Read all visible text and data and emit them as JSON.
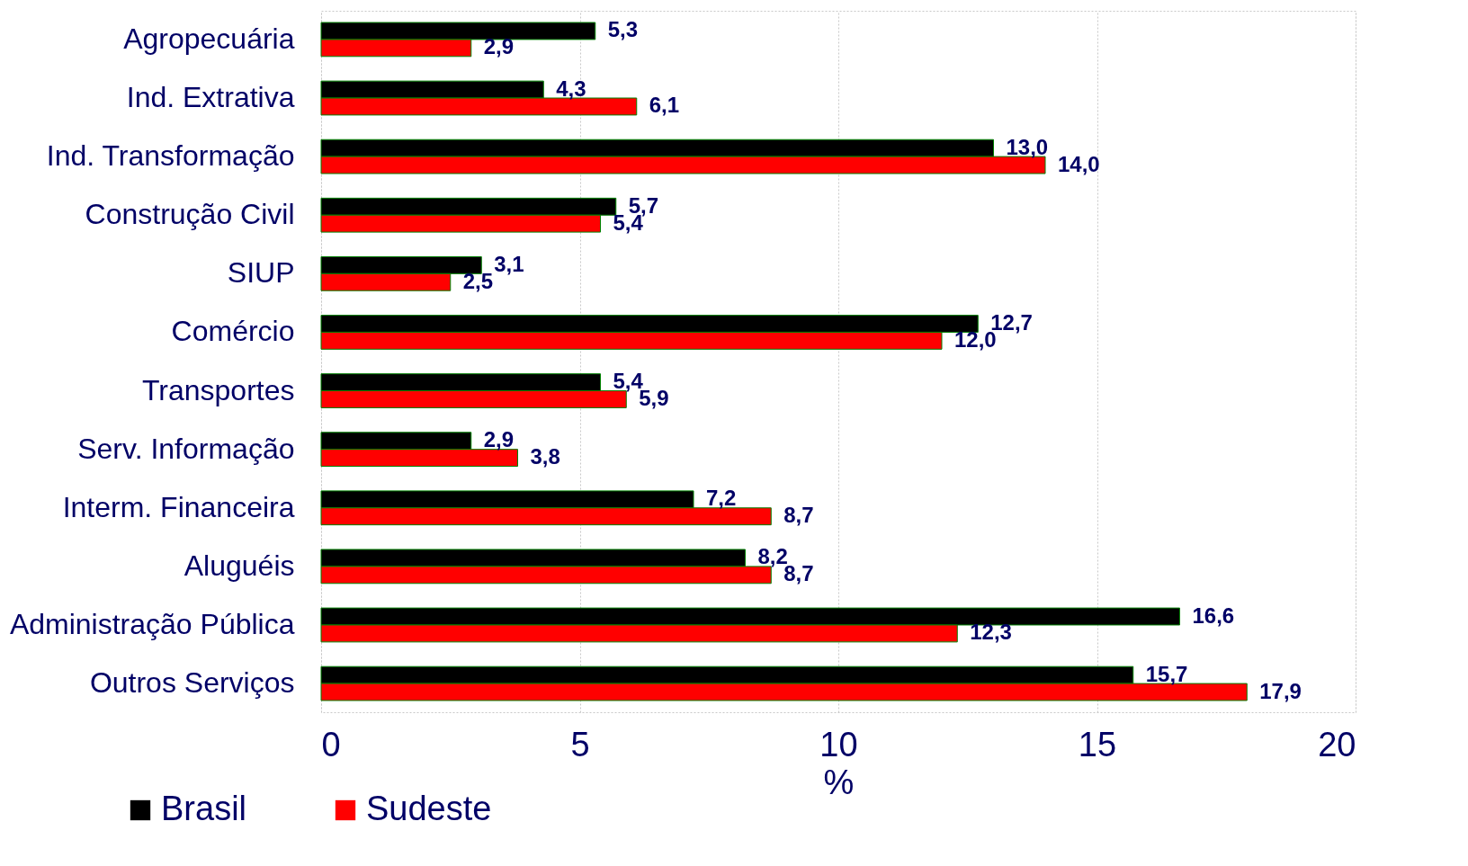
{
  "chart_data": {
    "type": "bar",
    "orientation": "horizontal",
    "categories": [
      "Agropecuária",
      "Ind. Extrativa",
      "Ind. Transformação",
      "Construção Civil",
      "SIUP",
      "Comércio",
      "Transportes",
      "Serv. Informação",
      "Interm. Financeira",
      "Aluguéis",
      "Administração Pública",
      "Outros Serviços"
    ],
    "series": [
      {
        "name": "Brasil",
        "color": "#000000",
        "values": [
          5.3,
          4.3,
          13.0,
          5.7,
          3.1,
          12.7,
          5.4,
          2.9,
          7.2,
          8.2,
          16.6,
          15.7
        ],
        "value_labels": [
          "5,3",
          "4,3",
          "13,0",
          "5,7",
          "3,1",
          "12,7",
          "5,4",
          "2,9",
          "7,2",
          "8,2",
          "16,6",
          "15,7"
        ]
      },
      {
        "name": "Sudeste",
        "color": "#ff0000",
        "values": [
          2.9,
          6.1,
          14.0,
          5.4,
          2.5,
          12.0,
          5.9,
          3.8,
          8.7,
          8.7,
          12.3,
          17.9
        ],
        "value_labels": [
          "2,9",
          "6,1",
          "14,0",
          "5,4",
          "2,5",
          "12,0",
          "5,9",
          "3,8",
          "8,7",
          "8,7",
          "12,3",
          "17,9"
        ]
      }
    ],
    "xlabel": "%",
    "xlim": [
      0,
      20
    ],
    "xticks": [
      0,
      5,
      10,
      15,
      20
    ],
    "grid": "x",
    "legend": "bottom left"
  }
}
